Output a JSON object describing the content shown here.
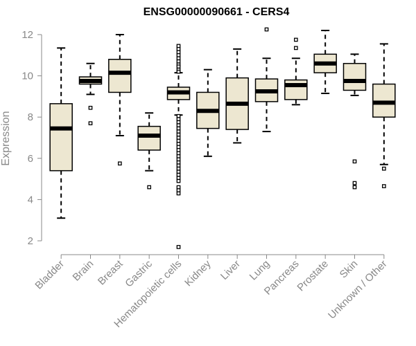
{
  "chart_data": {
    "type": "boxplot",
    "title": "ENSG00000090661 - CERS4",
    "xlabel": "",
    "ylabel": "Expression",
    "ylim": [
      1.6,
      12.3
    ],
    "yticks": [
      2,
      4,
      6,
      8,
      10,
      12
    ],
    "grid": false,
    "colors": {
      "box_fill": "#ede7d1",
      "stroke": "#000000",
      "axis_text": "#888888"
    },
    "categories": [
      "Bladder",
      "Brain",
      "Breast",
      "Gastric",
      "Hematopoietic cells",
      "Kidney",
      "Liver",
      "Lung",
      "Pancreas",
      "Prostate",
      "Skin",
      "Unknown / Other"
    ],
    "boxes": [
      {
        "category": "Bladder",
        "whisker_low": 3.1,
        "q1": 5.4,
        "median": 7.45,
        "q3": 8.65,
        "whisker_high": 11.35,
        "outliers": []
      },
      {
        "category": "Brain",
        "whisker_low": 9.1,
        "q1": 9.6,
        "median": 9.75,
        "q3": 9.95,
        "whisker_high": 10.6,
        "outliers": [
          8.45,
          7.7
        ]
      },
      {
        "category": "Breast",
        "whisker_low": 7.1,
        "q1": 9.2,
        "median": 10.15,
        "q3": 10.8,
        "whisker_high": 12.0,
        "outliers": [
          5.75
        ]
      },
      {
        "category": "Gastric",
        "whisker_low": 5.4,
        "q1": 6.4,
        "median": 7.1,
        "q3": 7.55,
        "whisker_high": 8.2,
        "outliers": [
          4.6
        ]
      },
      {
        "category": "Hematopoietic cells",
        "whisker_low": 8.1,
        "q1": 8.85,
        "median": 9.2,
        "q3": 9.45,
        "whisker_high": 10.15,
        "outliers": [
          11.45,
          11.3,
          11.15,
          11.0,
          10.85,
          10.7,
          10.55,
          10.45,
          10.3,
          10.2,
          8.05,
          7.9,
          7.75,
          7.6,
          7.45,
          7.3,
          7.15,
          7.0,
          6.85,
          6.7,
          6.55,
          6.4,
          6.25,
          6.1,
          5.95,
          5.8,
          5.65,
          5.5,
          5.35,
          5.2,
          5.05,
          4.9,
          4.6,
          4.45,
          4.3,
          1.7
        ]
      },
      {
        "category": "Kidney",
        "whisker_low": 6.1,
        "q1": 7.45,
        "median": 8.3,
        "q3": 9.2,
        "whisker_high": 10.3,
        "outliers": []
      },
      {
        "category": "Liver",
        "whisker_low": 6.75,
        "q1": 7.4,
        "median": 8.65,
        "q3": 9.9,
        "whisker_high": 11.3,
        "outliers": []
      },
      {
        "category": "Lung",
        "whisker_low": 7.3,
        "q1": 8.75,
        "median": 9.25,
        "q3": 9.85,
        "whisker_high": 10.85,
        "outliers": [
          12.25
        ]
      },
      {
        "category": "Pancreas",
        "whisker_low": 8.6,
        "q1": 8.85,
        "median": 9.55,
        "q3": 9.8,
        "whisker_high": 10.85,
        "outliers": [
          11.75,
          11.35
        ]
      },
      {
        "category": "Prostate",
        "whisker_low": 9.15,
        "q1": 10.15,
        "median": 10.6,
        "q3": 11.05,
        "whisker_high": 12.2,
        "outliers": []
      },
      {
        "category": "Skin",
        "whisker_low": 9.05,
        "q1": 9.3,
        "median": 9.75,
        "q3": 10.6,
        "whisker_high": 11.05,
        "outliers": [
          5.85,
          4.8,
          4.6
        ]
      },
      {
        "category": "Unknown / Other",
        "whisker_low": 5.7,
        "q1": 8.0,
        "median": 8.7,
        "q3": 9.6,
        "whisker_high": 11.55,
        "outliers": [
          5.5,
          4.65
        ]
      }
    ]
  }
}
